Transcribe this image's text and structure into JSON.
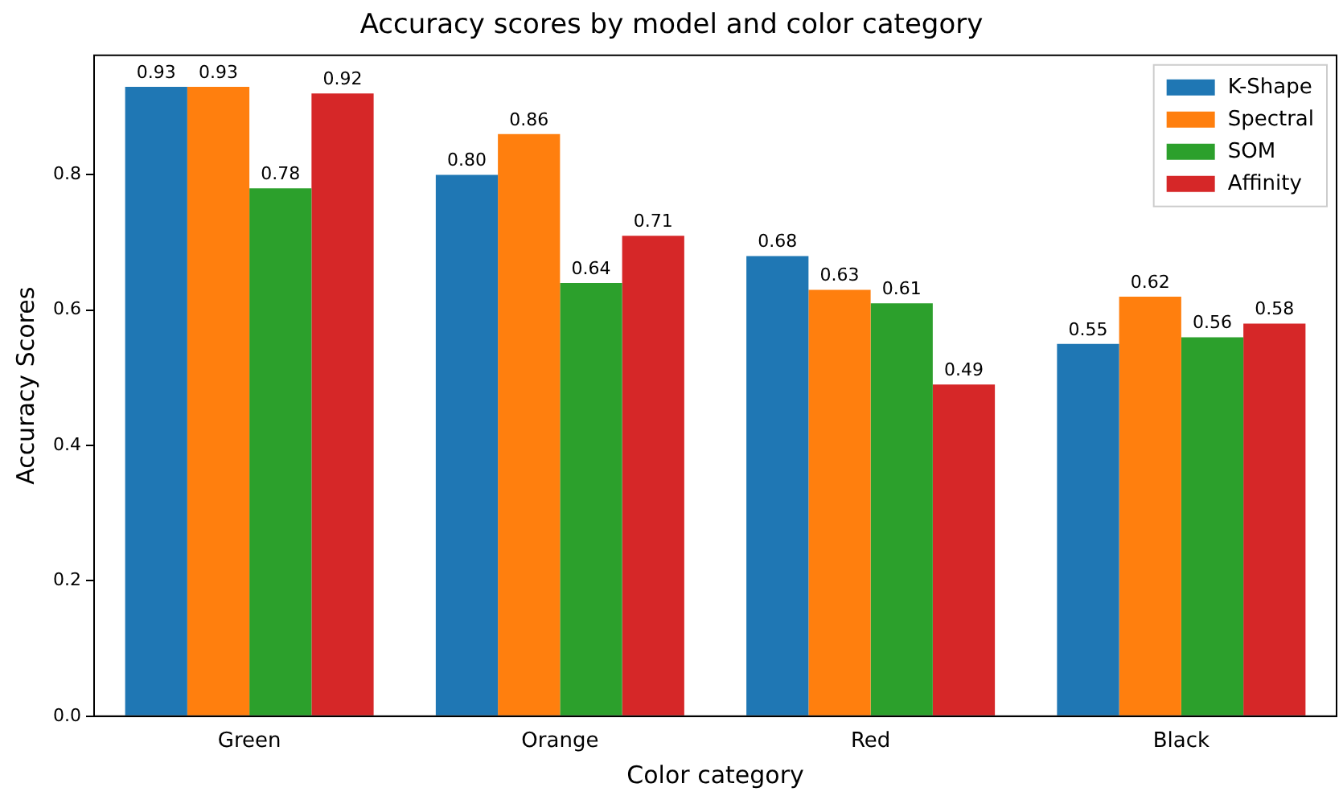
{
  "chart_data": {
    "type": "bar",
    "title": "Accuracy scores by model and color category",
    "xlabel": "Color category",
    "ylabel": "Accuracy Scores",
    "categories": [
      "Green",
      "Orange",
      "Red",
      "Black"
    ],
    "series": [
      {
        "name": "K-Shape",
        "color": "#1f77b4",
        "values": [
          0.93,
          0.8,
          0.68,
          0.55
        ],
        "value_labels": [
          "0.93",
          "0.80",
          "0.68",
          "0.55"
        ]
      },
      {
        "name": "Spectral",
        "color": "#ff7f0e",
        "values": [
          0.93,
          0.86,
          0.63,
          0.62
        ],
        "value_labels": [
          "0.93",
          "0.86",
          "0.63",
          "0.62"
        ]
      },
      {
        "name": "SOM",
        "color": "#2ca02c",
        "values": [
          0.78,
          0.64,
          0.61,
          0.56
        ],
        "value_labels": [
          "0.78",
          "0.64",
          "0.61",
          "0.56"
        ]
      },
      {
        "name": "Affinity",
        "color": "#d62728",
        "values": [
          0.92,
          0.71,
          0.49,
          0.58
        ],
        "value_labels": [
          "0.92",
          "0.71",
          "0.49",
          "0.58"
        ]
      }
    ],
    "ylim": [
      0,
      0.9765
    ],
    "yticks": [
      {
        "value": 0,
        "label": "0.0"
      },
      {
        "value": 0.2,
        "label": "0.2"
      },
      {
        "value": 0.4,
        "label": "0.4"
      },
      {
        "value": 0.6,
        "label": "0.6"
      },
      {
        "value": 0.8,
        "label": "0.8"
      }
    ],
    "legend": "top right",
    "grid": false
  }
}
